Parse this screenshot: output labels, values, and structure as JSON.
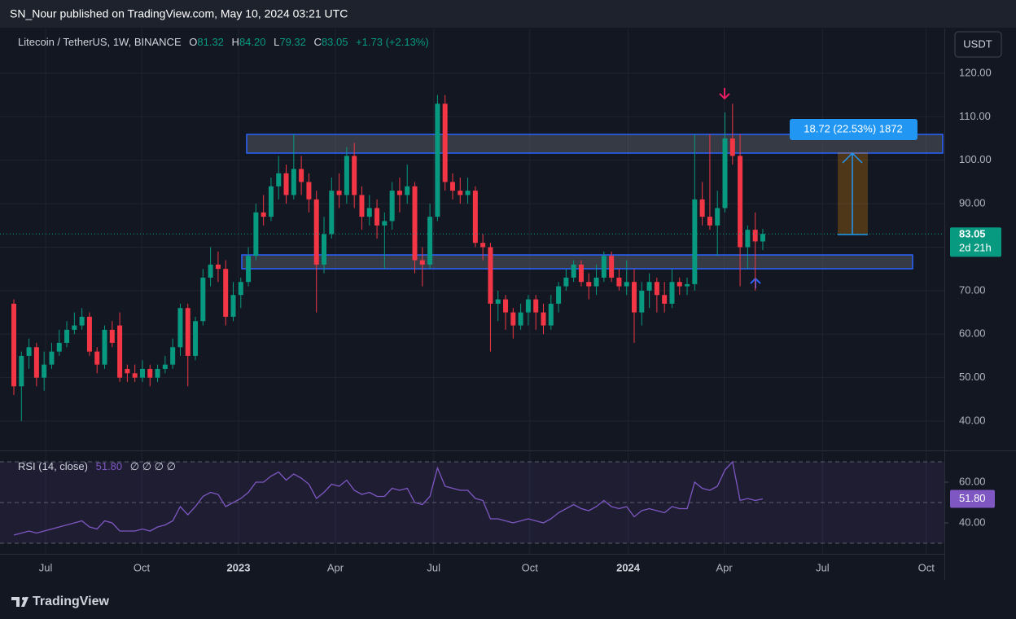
{
  "published": "SN_Nour published on TradingView.com, May 10, 2024 03:21 UTC",
  "brand": "TradingView",
  "currency_button": "USDT",
  "chart_data": [
    {
      "type": "candlestick",
      "title": "Litecoin / TetherUS, 1W, BINANCE",
      "ohlc_letters": [
        "O",
        "H",
        "L",
        "C"
      ],
      "last_labels": [
        "81.32",
        "84.20",
        "79.32",
        "83.05"
      ],
      "change_label": "+1.73 (+2.13%)",
      "countdown": "2d 21h",
      "measure_label": "18.72 (22.53%) 1872",
      "up_color": "#089981",
      "down_color": "#f23645",
      "open": [
        67,
        48,
        55,
        57,
        50,
        53,
        56,
        58,
        61,
        62,
        64,
        56,
        53,
        61,
        62,
        52,
        51,
        50,
        52,
        50,
        52,
        53,
        57,
        66,
        55,
        63,
        73,
        76,
        75,
        64,
        69,
        72,
        78,
        88,
        87,
        94,
        97,
        92,
        98,
        95,
        91,
        76,
        83,
        93,
        92,
        101,
        92,
        87,
        89,
        85,
        86,
        93,
        92,
        94,
        77,
        76,
        87,
        113,
        95,
        93,
        92,
        93,
        81,
        80,
        67,
        68,
        65,
        62,
        65,
        68,
        65,
        62,
        67,
        71,
        73,
        76,
        72,
        71,
        73,
        78,
        73,
        71,
        72,
        65,
        70,
        72,
        69,
        67,
        72,
        71,
        71.5,
        91,
        87,
        85,
        89,
        105,
        101,
        80,
        84,
        81.32
      ],
      "high": [
        68,
        56,
        59,
        58,
        56,
        58,
        61,
        63,
        65,
        66,
        65,
        57,
        62,
        63,
        65,
        53,
        53,
        54,
        53,
        53,
        55,
        59,
        67,
        67,
        64,
        75,
        80,
        79,
        77,
        72,
        73,
        80,
        90,
        92,
        96,
        101,
        99,
        106,
        101,
        97,
        93,
        87,
        96,
        97,
        103,
        104,
        94,
        92,
        91,
        88,
        95,
        96,
        99,
        95,
        80,
        90,
        115,
        115,
        97,
        96,
        96,
        94,
        83,
        81,
        70,
        69,
        66,
        67,
        69,
        69,
        67,
        69,
        72,
        75,
        77,
        77,
        74,
        76,
        79,
        79,
        75,
        77,
        75,
        72,
        74,
        73,
        72,
        75,
        73,
        73,
        106,
        95,
        106,
        93,
        111,
        113,
        106,
        85,
        88,
        84.2
      ],
      "low": [
        46,
        40,
        52,
        48,
        47,
        52,
        55,
        57,
        60,
        61,
        55,
        51,
        52,
        57,
        49,
        49,
        49,
        49,
        48,
        49,
        51,
        52,
        55,
        48,
        54,
        62,
        71,
        72,
        62,
        63,
        66,
        71,
        77,
        85,
        86,
        91,
        90,
        91,
        92,
        88,
        65,
        74,
        82,
        89,
        90,
        89,
        84,
        85,
        82,
        75,
        84,
        88,
        90,
        74,
        71,
        75,
        86,
        93,
        91,
        90,
        90,
        80,
        77,
        56,
        63,
        61,
        59,
        61,
        62,
        61,
        60,
        61,
        65,
        70,
        72,
        71,
        68,
        69,
        72,
        72,
        70,
        69,
        58,
        62,
        66,
        65,
        65,
        66,
        69,
        69,
        70,
        85,
        84,
        78,
        88,
        99,
        71,
        75,
        70,
        79.32
      ],
      "close": [
        48,
        55,
        57,
        50,
        53,
        56,
        58,
        61,
        62,
        64,
        56,
        53,
        61,
        58,
        50,
        51,
        50,
        52,
        50,
        52,
        53,
        57,
        66,
        55,
        63,
        73,
        76,
        75,
        64,
        69,
        72,
        78,
        88,
        87,
        94,
        97,
        92,
        98,
        95,
        91,
        76,
        83,
        93,
        92,
        101,
        92,
        87,
        89,
        85,
        86,
        93,
        92,
        94,
        77,
        76,
        87,
        113,
        95,
        93,
        92,
        93,
        81,
        80,
        67,
        68,
        65,
        62,
        65,
        68,
        65,
        62,
        67,
        71,
        73,
        76,
        72,
        71,
        73,
        78,
        73,
        71,
        72,
        65,
        70,
        72,
        69,
        67,
        72,
        71,
        71.5,
        91,
        87,
        85,
        89,
        105,
        101,
        80,
        84,
        81.32,
        83.05
      ],
      "xlim": [
        -1.83,
        123.0
      ],
      "xticks": [
        {
          "value": 4.2,
          "label": "Jul"
        },
        {
          "value": 16.9,
          "label": "Oct"
        },
        {
          "value": 29.7,
          "label": "2023"
        },
        {
          "value": 42.5,
          "label": "Apr"
        },
        {
          "value": 55.5,
          "label": "Jul"
        },
        {
          "value": 68.2,
          "label": "Oct"
        },
        {
          "value": 81.2,
          "label": "2024"
        },
        {
          "value": 93.9,
          "label": "Apr"
        },
        {
          "value": 106.9,
          "label": "Jul"
        },
        {
          "value": 120.6,
          "label": "Oct"
        }
      ],
      "ylim": [
        33.26,
        130.3
      ],
      "yticks": [
        {
          "value": 40,
          "label": "40.00"
        },
        {
          "value": 50,
          "label": "50.00"
        },
        {
          "value": 60,
          "label": "60.00"
        },
        {
          "value": 70,
          "label": "70.00"
        },
        {
          "value": 80,
          "label": "80.00"
        },
        {
          "value": 90,
          "label": "90.00"
        },
        {
          "value": 100,
          "label": "100.00"
        },
        {
          "value": 110,
          "label": "110.00"
        },
        {
          "value": 120,
          "label": "120.00"
        }
      ],
      "grid": true
    },
    {
      "type": "line",
      "name": "RSI (14, close)",
      "current_label": "51.80",
      "placeholders": "∅ ∅ ∅ ∅",
      "color": "#7e57c2",
      "values": [
        34,
        35,
        36,
        35,
        36,
        37,
        38,
        39,
        40,
        41,
        38,
        37,
        41,
        40,
        36,
        36,
        36,
        37,
        36,
        38,
        39,
        41,
        48,
        44,
        48,
        53,
        55,
        54,
        48,
        50,
        52,
        55,
        60,
        60,
        63,
        65,
        61,
        64,
        62,
        59,
        52,
        55,
        59,
        58,
        61,
        56,
        54,
        55,
        53,
        53,
        57,
        56,
        57,
        50,
        49,
        53,
        67,
        58,
        57,
        56,
        56,
        52,
        51,
        42,
        42,
        41,
        40,
        41,
        42,
        41,
        40,
        42,
        45,
        47,
        49,
        47,
        46,
        48,
        51,
        48,
        47,
        48,
        43,
        46,
        47,
        46,
        45,
        48,
        47,
        47,
        60,
        57,
        56,
        58,
        66,
        70,
        51,
        52,
        51,
        51.8
      ],
      "ylim": [
        24.8,
        74.8
      ],
      "yticks": [
        {
          "value": 40,
          "label": "40.00"
        },
        {
          "value": 60,
          "label": "60.00"
        }
      ],
      "bands": [
        70,
        50,
        30
      ]
    }
  ]
}
